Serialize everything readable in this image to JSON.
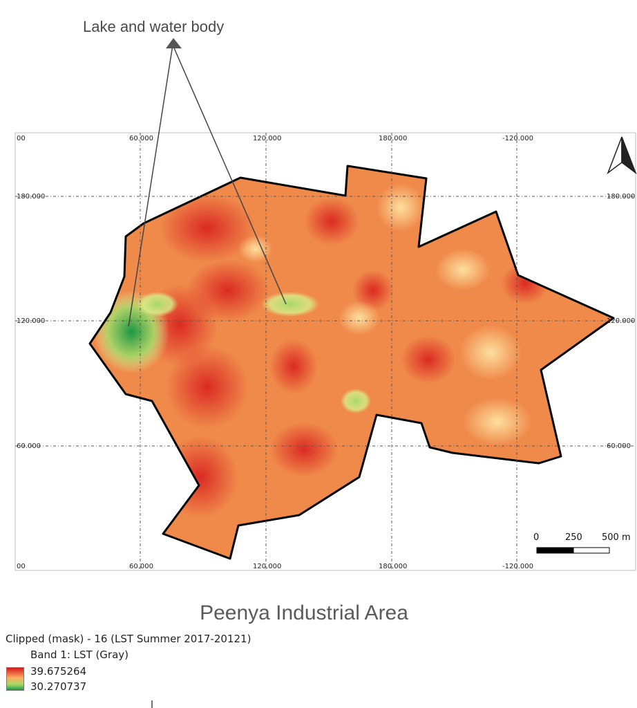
{
  "annotation": {
    "label": "Lake and water body"
  },
  "map": {
    "title": "Peenya Industrial Area",
    "grid": {
      "top_labels": [
        "00",
        "60.000",
        "120.000",
        "180.000",
        "-120.000"
      ],
      "bottom_labels": [
        "00",
        "60.000",
        "120.000",
        "180.000",
        "-120.000"
      ],
      "left_labels": [
        "180.000",
        "120.000",
        "60.000"
      ],
      "right_labels": [
        "180.000",
        "120.000",
        "60.000"
      ]
    },
    "colors": {
      "hot": "#d7191c",
      "warm": "#fdae61",
      "cool": "#a6d96a",
      "cold": "#1a9641",
      "boundary": "#000000"
    },
    "north_arrow_icon": "north-arrow-icon",
    "scale_bar": {
      "labels": [
        "0",
        "250",
        "500 m"
      ]
    }
  },
  "legend": {
    "layer_name": "Clipped (mask) - 16 (LST Summer 2017-20121)",
    "band": "Band 1: LST (Gray)",
    "max_value": "39.675264",
    "min_value": "30.270737"
  }
}
